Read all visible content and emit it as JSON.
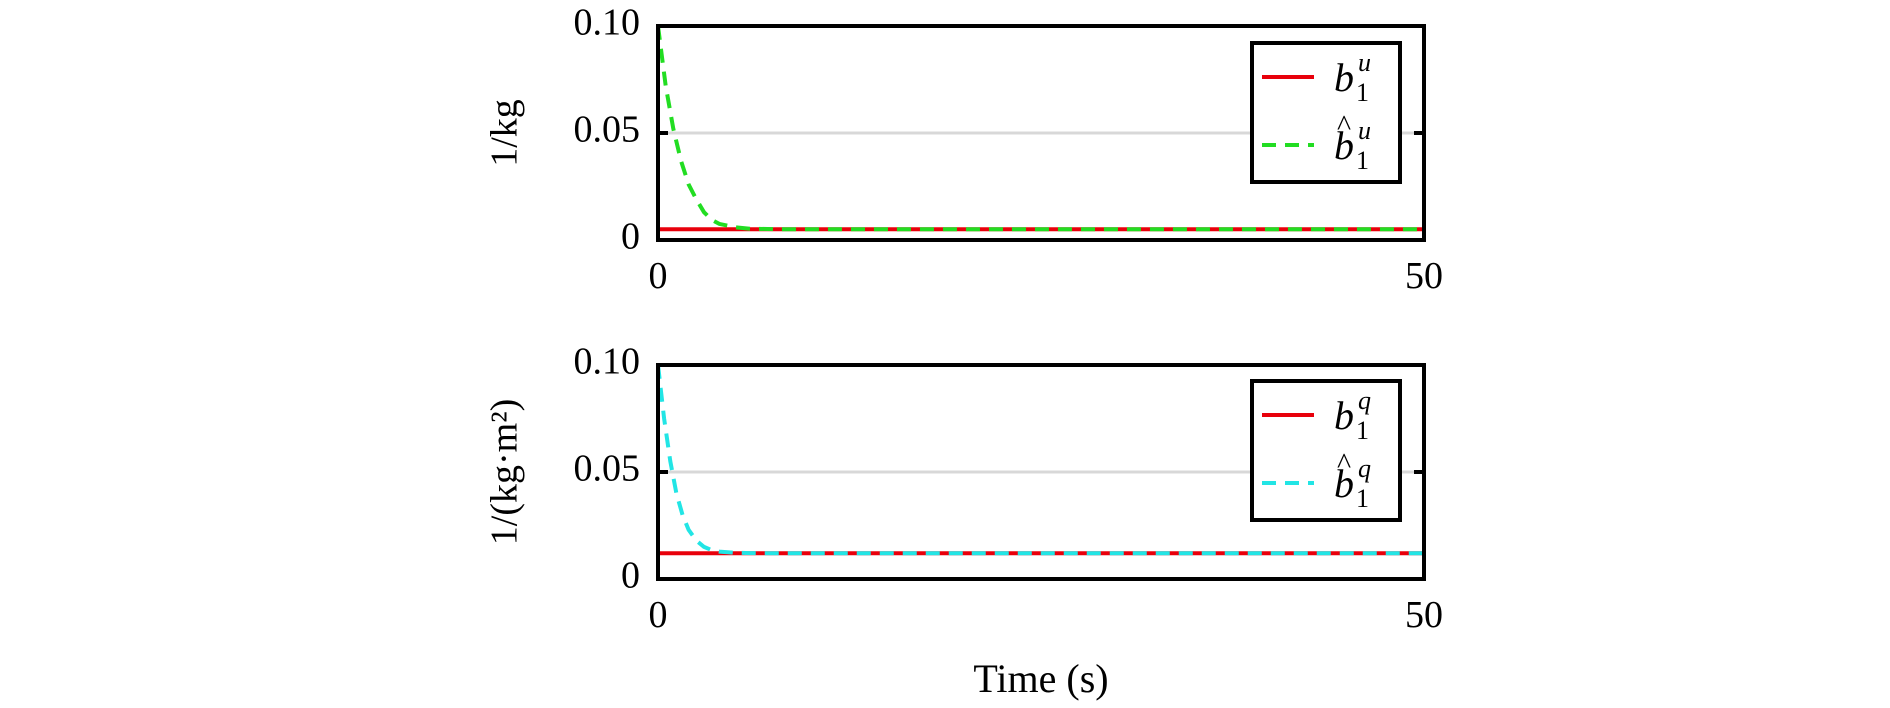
{
  "chart_data": [
    {
      "type": "line",
      "ylabel": "1/kg",
      "xlim": [
        0,
        50
      ],
      "ylim": [
        0,
        0.1
      ],
      "xticks": [
        "0",
        "50"
      ],
      "yticks": [
        "0",
        "0.05",
        "0.10"
      ],
      "grid": "horizontal",
      "legend_position": "top-right",
      "series": [
        {
          "name": "b1u",
          "legend": {
            "base": "b",
            "sub": "1",
            "sup": "u",
            "hat": false
          },
          "color": "#e8000b",
          "dash": "solid",
          "x": [
            0,
            50
          ],
          "y": [
            0.005,
            0.005
          ]
        },
        {
          "name": "b1u-hat",
          "legend": {
            "base": "b",
            "sub": "1",
            "sup": "u",
            "hat": true
          },
          "color": "#22dd22",
          "dash": "dashed",
          "x": [
            0,
            0.5,
            1,
            1.5,
            2,
            2.5,
            3,
            3.5,
            4,
            5,
            6,
            8,
            10,
            50
          ],
          "y": [
            0.1,
            0.072,
            0.052,
            0.037,
            0.026,
            0.019,
            0.013,
            0.0095,
            0.0075,
            0.006,
            0.0053,
            0.005,
            0.005,
            0.005
          ]
        }
      ]
    },
    {
      "type": "line",
      "ylabel": "1/(kg·m²)",
      "xlabel": "Time (s)",
      "xlim": [
        0,
        50
      ],
      "ylim": [
        0,
        0.1
      ],
      "xticks": [
        "0",
        "50"
      ],
      "yticks": [
        "0",
        "0.05",
        "0.10"
      ],
      "grid": "horizontal",
      "legend_position": "top-right",
      "series": [
        {
          "name": "b1q",
          "legend": {
            "base": "b",
            "sub": "1",
            "sup": "q",
            "hat": false
          },
          "color": "#e8000b",
          "dash": "solid",
          "x": [
            0,
            50
          ],
          "y": [
            0.012,
            0.012
          ]
        },
        {
          "name": "b1q-hat",
          "legend": {
            "base": "b",
            "sub": "1",
            "sup": "q",
            "hat": true
          },
          "color": "#22e5e5",
          "dash": "dashed",
          "x": [
            0,
            0.4,
            0.8,
            1.2,
            1.6,
            2,
            2.5,
            3,
            3.5,
            4,
            5,
            6,
            8,
            50
          ],
          "y": [
            0.1,
            0.075,
            0.055,
            0.04,
            0.03,
            0.023,
            0.018,
            0.015,
            0.0135,
            0.0128,
            0.0123,
            0.0121,
            0.012,
            0.012
          ]
        }
      ]
    }
  ]
}
